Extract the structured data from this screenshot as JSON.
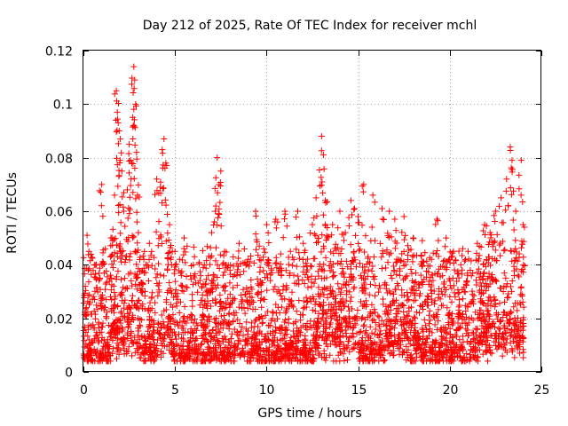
{
  "chart_data": {
    "type": "scatter",
    "title": "Day 212 of 2025, Rate Of TEC Index for receiver mchl",
    "xlabel": "GPS time / hours",
    "ylabel": "ROTI / TECUs",
    "xlim": [
      0,
      25
    ],
    "ylim": [
      0,
      0.12
    ],
    "xticks": [
      0,
      5,
      10,
      15,
      20,
      25
    ],
    "xtick_labels": [
      "0",
      "5",
      "10",
      "15",
      "20",
      "25"
    ],
    "yticks": [
      0,
      0.02,
      0.04,
      0.06,
      0.08,
      0.1,
      0.12
    ],
    "ytick_labels": [
      "0",
      "0.02",
      "0.04",
      "0.06",
      "0.08",
      "0.1",
      "0.12"
    ],
    "grid": true,
    "marker": "+",
    "series": [
      {
        "name": "ROTI",
        "color": "#ff0000",
        "description_points": [
          [
            0.1,
            0.032
          ],
          [
            0.2,
            0.051
          ],
          [
            0.3,
            0.045
          ],
          [
            0.6,
            0.04
          ],
          [
            0.9,
            0.035
          ],
          [
            1.0,
            0.07
          ],
          [
            1.2,
            0.046
          ],
          [
            1.5,
            0.05
          ],
          [
            1.7,
            0.066
          ],
          [
            1.8,
            0.105
          ],
          [
            1.85,
            0.097
          ],
          [
            1.9,
            0.093
          ],
          [
            1.95,
            0.09
          ],
          [
            2.0,
            0.079
          ],
          [
            2.1,
            0.075
          ],
          [
            2.2,
            0.06
          ],
          [
            2.4,
            0.068
          ],
          [
            2.5,
            0.085
          ],
          [
            2.6,
            0.072
          ],
          [
            2.7,
            0.087
          ],
          [
            2.75,
            0.114
          ],
          [
            2.8,
            0.109
          ],
          [
            2.85,
            0.1
          ],
          [
            2.9,
            0.082
          ],
          [
            2.95,
            0.066
          ],
          [
            3.0,
            0.052
          ],
          [
            3.3,
            0.042
          ],
          [
            3.6,
            0.048
          ],
          [
            4.0,
            0.072
          ],
          [
            4.2,
            0.069
          ],
          [
            4.3,
            0.083
          ],
          [
            4.4,
            0.087
          ],
          [
            4.5,
            0.078
          ],
          [
            4.7,
            0.055
          ],
          [
            5.0,
            0.045
          ],
          [
            5.5,
            0.05
          ],
          [
            6.0,
            0.04
          ],
          [
            6.6,
            0.04
          ],
          [
            7.0,
            0.052
          ],
          [
            7.2,
            0.06
          ],
          [
            7.3,
            0.08
          ],
          [
            7.4,
            0.07
          ],
          [
            7.5,
            0.075
          ],
          [
            7.7,
            0.045
          ],
          [
            8.0,
            0.038
          ],
          [
            8.5,
            0.048
          ],
          [
            9.0,
            0.042
          ],
          [
            9.4,
            0.06
          ],
          [
            9.6,
            0.047
          ],
          [
            10.0,
            0.055
          ],
          [
            10.5,
            0.057
          ],
          [
            11.0,
            0.06
          ],
          [
            11.3,
            0.045
          ],
          [
            11.7,
            0.06
          ],
          [
            12.0,
            0.048
          ],
          [
            12.5,
            0.055
          ],
          [
            12.7,
            0.065
          ],
          [
            13.0,
            0.088
          ],
          [
            13.1,
            0.081
          ],
          [
            13.2,
            0.064
          ],
          [
            13.6,
            0.055
          ],
          [
            14.0,
            0.06
          ],
          [
            14.3,
            0.052
          ],
          [
            14.6,
            0.064
          ],
          [
            14.8,
            0.061
          ],
          [
            15.0,
            0.058
          ],
          [
            15.3,
            0.07
          ],
          [
            15.8,
            0.066
          ],
          [
            16.3,
            0.061
          ],
          [
            16.7,
            0.06
          ],
          [
            17.0,
            0.057
          ],
          [
            17.5,
            0.058
          ],
          [
            18.0,
            0.05
          ],
          [
            18.5,
            0.049
          ],
          [
            19.0,
            0.042
          ],
          [
            19.3,
            0.057
          ],
          [
            19.8,
            0.05
          ],
          [
            20.2,
            0.045
          ],
          [
            20.6,
            0.04
          ],
          [
            21.0,
            0.045
          ],
          [
            21.5,
            0.048
          ],
          [
            21.9,
            0.055
          ],
          [
            22.2,
            0.052
          ],
          [
            22.5,
            0.06
          ],
          [
            22.8,
            0.065
          ],
          [
            23.1,
            0.072
          ],
          [
            23.3,
            0.084
          ],
          [
            23.4,
            0.079
          ],
          [
            23.6,
            0.06
          ],
          [
            23.9,
            0.079
          ],
          [
            24.0,
            0.055
          ]
        ],
        "baseline_range": [
          0.005,
          0.045
        ],
        "typical_median": 0.015
      }
    ]
  }
}
